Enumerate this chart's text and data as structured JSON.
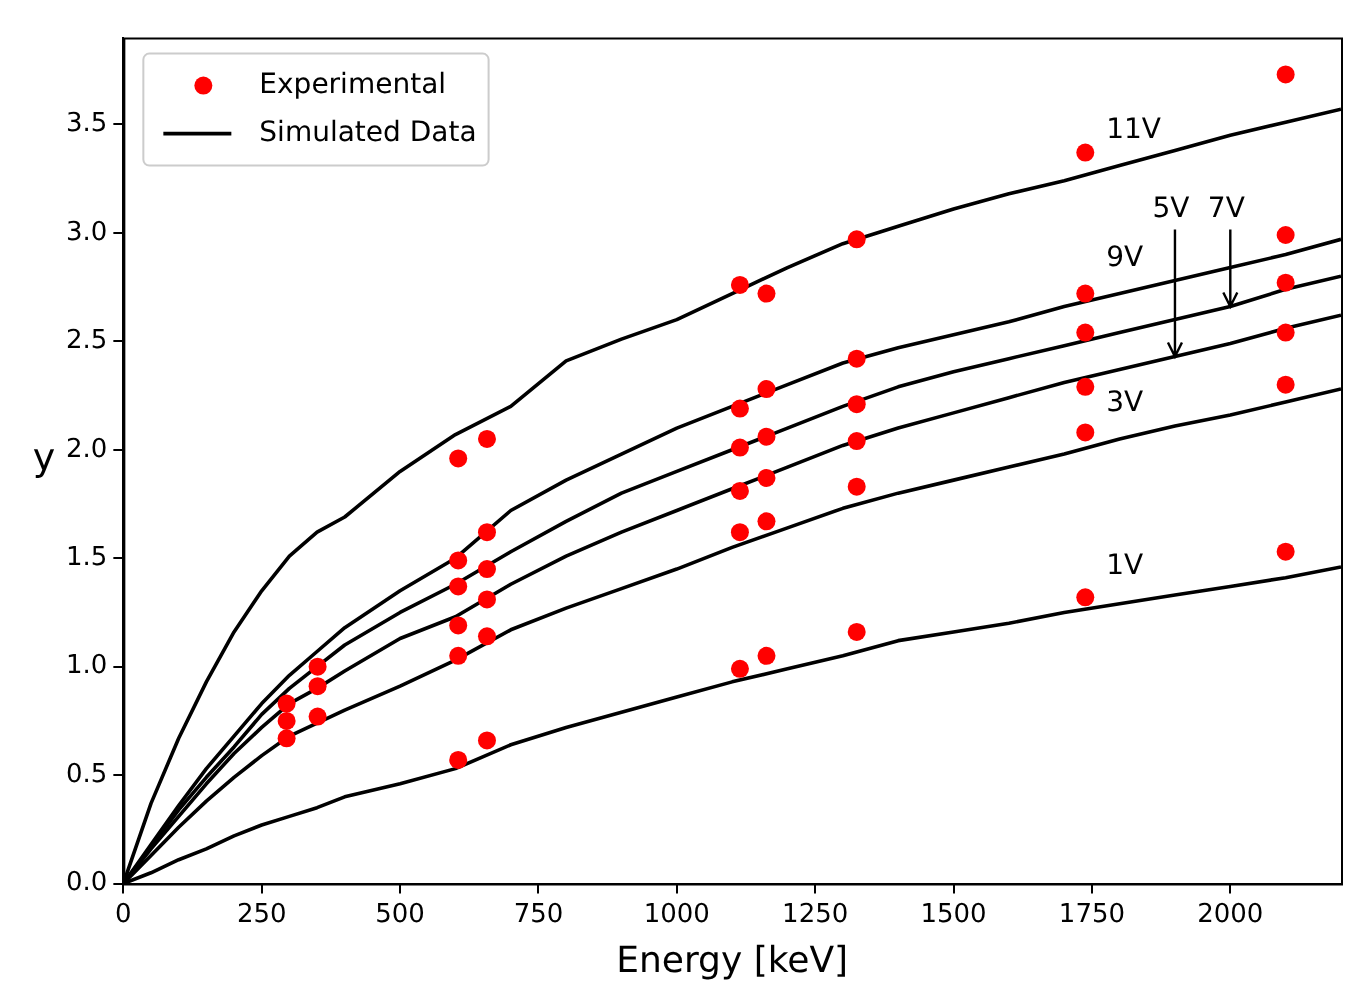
{
  "chart_data": {
    "type": "line",
    "xlabel": "Energy [keV]",
    "ylabel": "y",
    "xlim": [
      0,
      2200
    ],
    "ylim": [
      0,
      3.9
    ],
    "xticks": [
      0,
      250,
      500,
      750,
      1000,
      1250,
      1500,
      1750,
      2000
    ],
    "yticks": [
      {
        "value": 0,
        "label": "0.0"
      },
      0.5,
      {
        "value": 1,
        "label": "1.0"
      },
      1.5,
      {
        "value": 2,
        "label": "2.0"
      },
      2.5,
      {
        "value": 3,
        "label": "3.0"
      },
      3.5
    ],
    "grid": false,
    "legend": "top left",
    "series": [
      {
        "name": "Experimental",
        "type": "scatter",
        "marker": "circle",
        "color": "#ff0000",
        "x": [
          295,
          295,
          295,
          351,
          351,
          351,
          605,
          605,
          605,
          605,
          605,
          605,
          657,
          657,
          657,
          657,
          657,
          657,
          1114,
          1114,
          1114,
          1114,
          1114,
          1114,
          1162,
          1162,
          1162,
          1162,
          1162,
          1162,
          1325,
          1325,
          1325,
          1325,
          1325,
          1325,
          1738,
          1738,
          1738,
          1738,
          1738,
          1738,
          2100,
          2100,
          2100,
          2100,
          2100,
          2100
        ],
        "values": [
          0.83,
          0.75,
          0.67,
          1.0,
          0.91,
          0.77,
          1.96,
          1.49,
          1.37,
          1.19,
          1.05,
          0.57,
          2.05,
          1.62,
          1.45,
          1.31,
          1.14,
          0.66,
          2.76,
          2.19,
          2.01,
          1.81,
          1.62,
          0.99,
          2.72,
          2.28,
          2.06,
          1.87,
          1.67,
          1.05,
          2.97,
          2.42,
          2.21,
          2.04,
          1.83,
          1.16,
          3.37,
          2.72,
          2.54,
          2.29,
          2.08,
          1.32,
          3.73,
          2.99,
          2.77,
          2.54,
          2.3,
          1.53
        ]
      },
      {
        "name": "Simulated Data",
        "type": "line",
        "marker": "none",
        "color": "#000000",
        "x": [
          0,
          50,
          100,
          150,
          200,
          250,
          300,
          350,
          400,
          500,
          600,
          700,
          800,
          900,
          1000,
          1100,
          1200,
          1300,
          1400,
          1500,
          1600,
          1700,
          1800,
          1900,
          2000,
          2100,
          2200
        ],
        "values": [
          0,
          0.05,
          0.11,
          0.16,
          0.22,
          0.27,
          0.31,
          0.35,
          0.4,
          0.46,
          0.53,
          0.64,
          0.72,
          0.79,
          0.86,
          0.93,
          0.99,
          1.05,
          1.12,
          1.16,
          1.2,
          1.25,
          1.29,
          1.33,
          1.37,
          1.41,
          1.46
        ]
      },
      {
        "type": "line",
        "marker": "none",
        "color": "#000000",
        "x": [
          0,
          50,
          100,
          150,
          200,
          250,
          300,
          350,
          400,
          500,
          600,
          700,
          800,
          900,
          1000,
          1100,
          1200,
          1300,
          1400,
          1500,
          1600,
          1700,
          1800,
          1900,
          2000,
          2100,
          2200
        ],
        "values": [
          0,
          0.13,
          0.26,
          0.38,
          0.49,
          0.59,
          0.68,
          0.74,
          0.8,
          0.91,
          1.03,
          1.17,
          1.27,
          1.36,
          1.45,
          1.55,
          1.64,
          1.73,
          1.8,
          1.86,
          1.92,
          1.98,
          2.05,
          2.11,
          2.16,
          2.22,
          2.28
        ]
      },
      {
        "type": "line",
        "marker": "none",
        "color": "#000000",
        "x": [
          0,
          50,
          100,
          150,
          200,
          250,
          300,
          350,
          400,
          500,
          600,
          700,
          800,
          900,
          1000,
          1100,
          1200,
          1300,
          1400,
          1500,
          1600,
          1700,
          1800,
          1900,
          2000,
          2100,
          2200
        ],
        "values": [
          0,
          0.16,
          0.31,
          0.46,
          0.6,
          0.72,
          0.83,
          0.9,
          0.98,
          1.13,
          1.23,
          1.38,
          1.51,
          1.62,
          1.72,
          1.82,
          1.92,
          2.02,
          2.1,
          2.17,
          2.24,
          2.31,
          2.37,
          2.43,
          2.49,
          2.56,
          2.62
        ]
      },
      {
        "type": "line",
        "marker": "none",
        "color": "#000000",
        "x": [
          0,
          50,
          100,
          150,
          200,
          250,
          300,
          350,
          400,
          500,
          600,
          700,
          800,
          900,
          1000,
          1100,
          1200,
          1300,
          1400,
          1500,
          1600,
          1700,
          1800,
          1900,
          2000,
          2100,
          2200
        ],
        "values": [
          0,
          0.17,
          0.34,
          0.49,
          0.63,
          0.78,
          0.9,
          1.0,
          1.1,
          1.25,
          1.38,
          1.53,
          1.67,
          1.8,
          1.9,
          2.0,
          2.1,
          2.2,
          2.29,
          2.36,
          2.42,
          2.48,
          2.54,
          2.6,
          2.66,
          2.74,
          2.8
        ]
      },
      {
        "type": "line",
        "marker": "none",
        "color": "#000000",
        "x": [
          0,
          50,
          100,
          150,
          200,
          250,
          300,
          350,
          400,
          500,
          600,
          700,
          800,
          900,
          1000,
          1100,
          1200,
          1300,
          1400,
          1500,
          1600,
          1700,
          1800,
          1900,
          2000,
          2100,
          2200
        ],
        "values": [
          0,
          0.18,
          0.36,
          0.53,
          0.68,
          0.83,
          0.96,
          1.07,
          1.18,
          1.35,
          1.5,
          1.72,
          1.86,
          1.98,
          2.1,
          2.2,
          2.3,
          2.4,
          2.47,
          2.53,
          2.59,
          2.66,
          2.72,
          2.78,
          2.84,
          2.9,
          2.97
        ]
      },
      {
        "type": "line",
        "marker": "none",
        "color": "#000000",
        "x": [
          0,
          50,
          100,
          150,
          200,
          250,
          300,
          350,
          400,
          500,
          600,
          700,
          800,
          900,
          1000,
          1100,
          1200,
          1300,
          1400,
          1500,
          1600,
          1700,
          1800,
          1900,
          2000,
          2100,
          2200
        ],
        "values": [
          0,
          0.37,
          0.67,
          0.93,
          1.16,
          1.35,
          1.51,
          1.62,
          1.69,
          1.9,
          2.07,
          2.2,
          2.41,
          2.51,
          2.6,
          2.72,
          2.84,
          2.95,
          3.03,
          3.11,
          3.18,
          3.24,
          3.31,
          3.38,
          3.45,
          3.51,
          3.57
        ]
      }
    ],
    "annotations": [
      {
        "text": "11V",
        "x": 1765,
        "y": 3.28
      },
      {
        "text": "9V",
        "x": 1765,
        "y": 2.69
      },
      {
        "text": "7V",
        "x": 2000,
        "y": 2.66
      },
      {
        "text": "5V",
        "x": 1900,
        "y": 2.43
      },
      {
        "text": "3V",
        "x": 1765,
        "y": 2.02
      },
      {
        "text": "1V",
        "x": 1765,
        "y": 1.27
      }
    ]
  }
}
